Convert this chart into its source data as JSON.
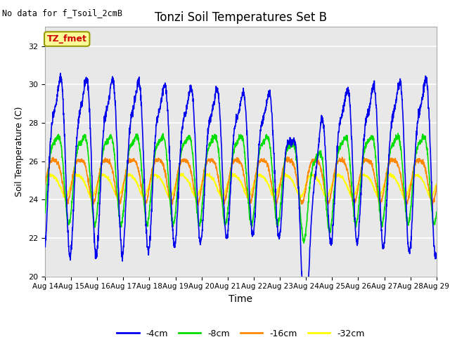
{
  "title": "Tonzi Soil Temperatures Set B",
  "xlabel": "Time",
  "ylabel": "Soil Temperature (C)",
  "note": "No data for f_Tsoil_2cmB",
  "legend_label": "TZ_fmet",
  "ylim": [
    20,
    33
  ],
  "yticks": [
    20,
    22,
    24,
    26,
    28,
    30,
    32
  ],
  "xlim": [
    0,
    15
  ],
  "background_color": "#e8e8e8",
  "grid_color": "#ffffff",
  "series": {
    "-4cm": {
      "color": "#0000ee",
      "lw": 1.2
    },
    "-8cm": {
      "color": "#00dd00",
      "lw": 1.2
    },
    "-16cm": {
      "color": "#ff8800",
      "lw": 1.2
    },
    "-32cm": {
      "color": "#ffff00",
      "lw": 1.2
    }
  },
  "xtick_labels": [
    "Aug 14",
    "Aug 15",
    "Aug 16",
    "Aug 17",
    "Aug 18",
    "Aug 19",
    "Aug 20",
    "Aug 21",
    "Aug 22",
    "Aug 23",
    "Aug 24",
    "Aug 25",
    "Aug 26",
    "Aug 27",
    "Aug 28",
    "Aug 29"
  ],
  "legend_box_color": "#ffff99",
  "legend_text_color": "#cc0000",
  "figsize": [
    6.4,
    4.8
  ],
  "dpi": 100
}
